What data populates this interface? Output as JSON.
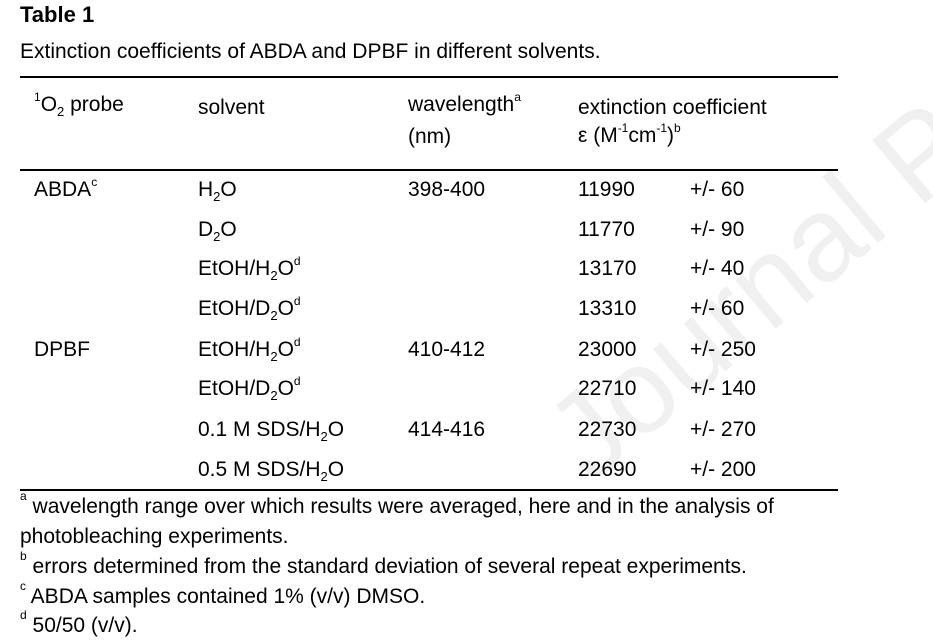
{
  "table": {
    "label": "Table 1",
    "caption": "Extinction coefficients of ABDA and DPBF in different  solvents.",
    "headers": {
      "probe_sup": "1",
      "probe_main": "O",
      "probe_sub": "2",
      "probe_rest": " probe",
      "solvent": "solvent",
      "wavelength_line1": "wavelength",
      "wavelength_sup": "a",
      "wavelength_line2": "(nm)",
      "ext_line1": "extinction coefficient",
      "ext_eps": "ε (M",
      "ext_sup1": "-1",
      "ext_cm": "cm",
      "ext_sup2": "-1",
      "ext_close": ")",
      "ext_sup3": "b"
    },
    "rows": [
      {
        "probe": "ABDA",
        "probe_sup": "c",
        "solvent_a": "H",
        "solvent_sub": "2",
        "solvent_b": "O",
        "solvent_sup": "",
        "wavelength": "398-400",
        "value": "11990",
        "error": "+/- 60"
      },
      {
        "probe": "",
        "probe_sup": "",
        "solvent_a": "D",
        "solvent_sub": "2",
        "solvent_b": "O",
        "solvent_sup": "",
        "wavelength": "",
        "value": "11770",
        "error": "+/- 90"
      },
      {
        "probe": "",
        "probe_sup": "",
        "solvent_a": "EtOH/H",
        "solvent_sub": "2",
        "solvent_b": "O",
        "solvent_sup": "d",
        "wavelength": "",
        "value": "13170",
        "error": "+/- 40"
      },
      {
        "probe": "",
        "probe_sup": "",
        "solvent_a": "EtOH/D",
        "solvent_sub": "2",
        "solvent_b": "O",
        "solvent_sup": "d",
        "wavelength": "",
        "value": "13310",
        "error": "+/- 60"
      },
      {
        "probe": "DPBF",
        "probe_sup": "",
        "solvent_a": "EtOH/H",
        "solvent_sub": "2",
        "solvent_b": "O",
        "solvent_sup": "d",
        "wavelength": "410-412",
        "value": "23000",
        "error": "+/- 250"
      },
      {
        "probe": "",
        "probe_sup": "",
        "solvent_a": "EtOH/D",
        "solvent_sub": "2",
        "solvent_b": "O",
        "solvent_sup": "d",
        "wavelength": "",
        "value": "22710",
        "error": "+/- 140"
      },
      {
        "probe": "",
        "probe_sup": "",
        "solvent_a": "0.1 M SDS/H",
        "solvent_sub": "2",
        "solvent_b": "O",
        "solvent_sup": "",
        "wavelength": "414-416",
        "value": "22730",
        "error": "+/- 270"
      },
      {
        "probe": "",
        "probe_sup": "",
        "solvent_a": "0.5 M SDS/H",
        "solvent_sub": "2",
        "solvent_b": "O",
        "solvent_sup": "",
        "wavelength": "",
        "value": "22690",
        "error": "+/- 200"
      }
    ],
    "footnotes": [
      {
        "mark": "a",
        "text": " wavelength  range over which results were averaged,  here and in the analysis of"
      },
      {
        "mark": "",
        "text": "photobleaching  experiments."
      },
      {
        "mark": "b",
        "text": " errors determined  from the standard deviation  of several repeat  experiments."
      },
      {
        "mark": "c",
        "text": " ABDA samples contained  1%  (v/v)  DMSO."
      },
      {
        "mark": "d",
        "text": " 50/50  (v/v)."
      }
    ]
  },
  "watermark": "Journal Pre-proof"
}
